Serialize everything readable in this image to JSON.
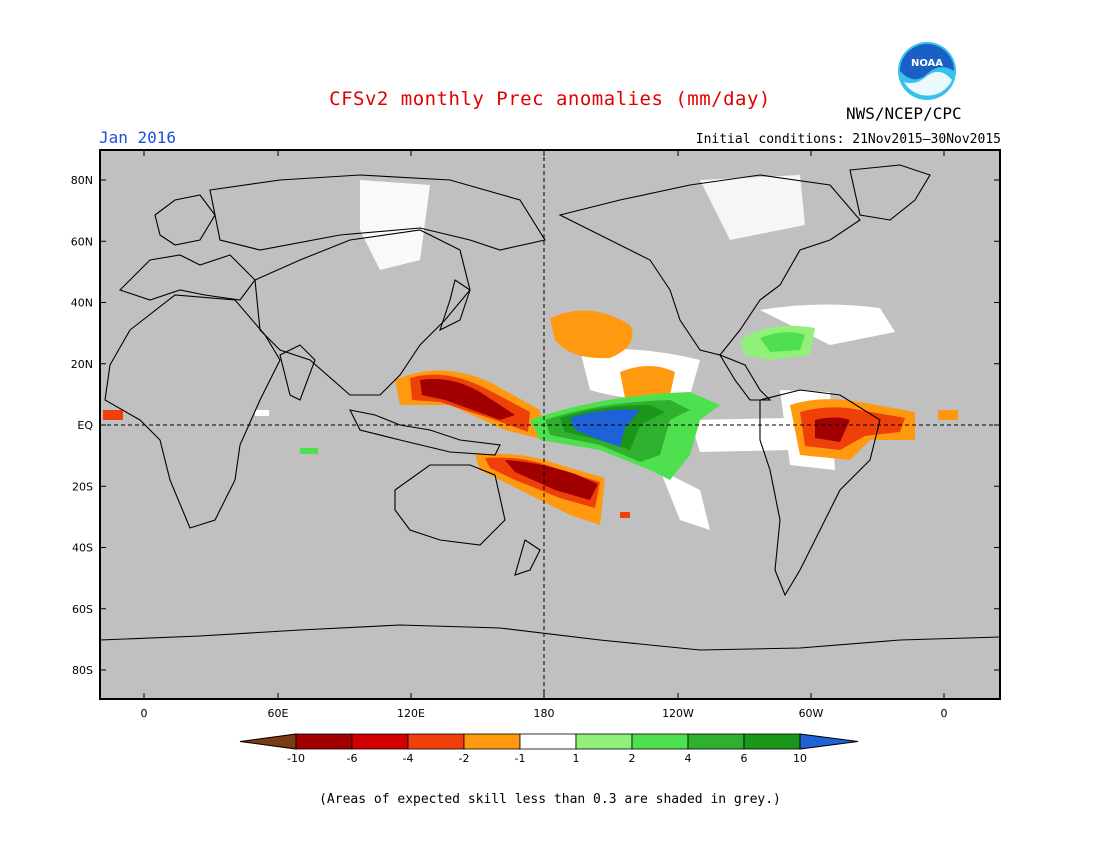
{
  "header": {
    "title": "CFSv2 monthly Prec anomalies (mm/day)",
    "agency": "NWS/NCEP/CPC",
    "period": "Jan 2016",
    "initial_conditions": "Initial conditions: 21Nov2015–30Nov2015"
  },
  "logo": {
    "text": "NOAA",
    "icon": "noaa-logo-icon",
    "colors": {
      "blue": "#1a5fc4",
      "cyan": "#35c3ec"
    }
  },
  "map": {
    "background_color": "#c0c0c0",
    "lat_labels": [
      "80N",
      "60N",
      "40N",
      "20N",
      "EQ",
      "20S",
      "40S",
      "60S",
      "80S"
    ],
    "lon_labels": [
      "0",
      "60E",
      "120E",
      "180",
      "120W",
      "60W",
      "0"
    ]
  },
  "legend": {
    "colors": [
      "#7a3b12",
      "#a00000",
      "#d00000",
      "#f0400a",
      "#ff9a10",
      "#ffffff",
      "#90f07a",
      "#4fe04f",
      "#2fb02f",
      "#1a961a",
      "#1f62d8"
    ],
    "labels": [
      "-10",
      "-6",
      "-4",
      "-2",
      "-1",
      "1",
      "2",
      "4",
      "6",
      "10"
    ]
  },
  "footnote": "(Areas of expected skill less than 0.3 are shaded in grey.)"
}
